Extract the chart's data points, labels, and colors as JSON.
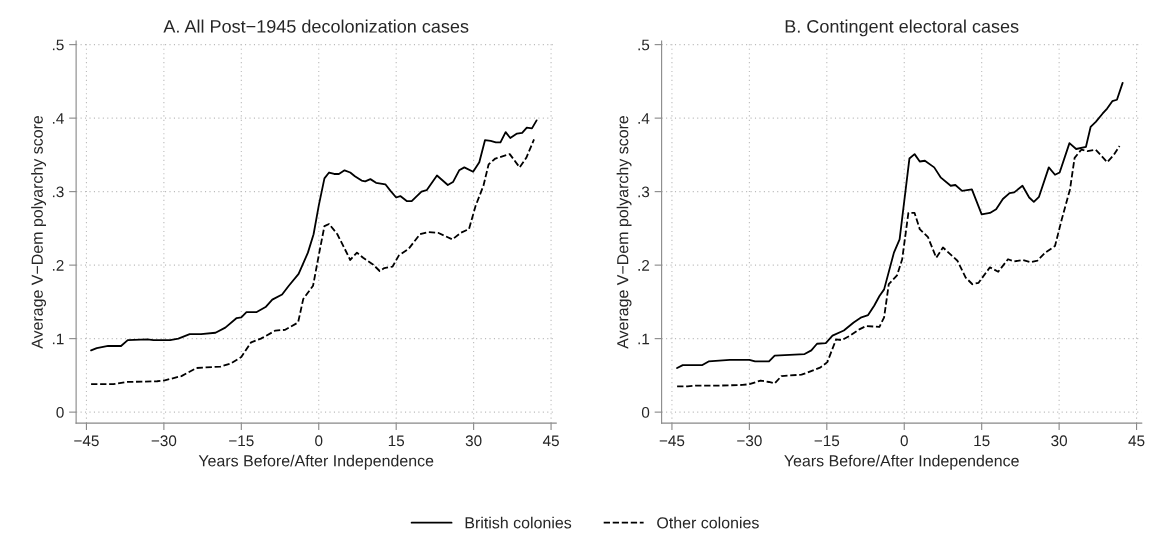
{
  "chart_data": [
    {
      "type": "line",
      "title": "A. All Post−1945 decolonization cases",
      "xlabel": "Years Before/After Independence",
      "ylabel": "Average V−Dem polyarchy score",
      "xlim": [
        -47,
        46
      ],
      "ylim": [
        -0.015,
        0.505
      ],
      "xticks": [
        {
          "value": -45,
          "label": "−45"
        },
        {
          "value": -30,
          "label": "−30"
        },
        {
          "value": -15,
          "label": "−15"
        },
        0,
        15,
        30,
        45
      ],
      "yticks": [
        0,
        {
          "value": 0.1,
          "label": ".1"
        },
        {
          "value": 0.2,
          "label": ".2"
        },
        {
          "value": 0.3,
          "label": ".3"
        },
        {
          "value": 0.4,
          "label": ".4"
        },
        {
          "value": 0.5,
          "label": ".5"
        }
      ],
      "grid": true,
      "legend": "bottom",
      "marker": "none",
      "series": [
        {
          "name": "British colonies",
          "color": "#000000",
          "line_style": "solid",
          "x": [
            -44.1,
            -43,
            -40.8,
            -38.3,
            -37,
            -33.2,
            -32,
            -28.8,
            -27.2,
            -25,
            -22.8,
            -20,
            -18.1,
            -15.9,
            -15,
            -14,
            -12.1,
            -10.3,
            -9,
            -7.1,
            -5.8,
            -3.9,
            -2.1,
            -1,
            0,
            1.1,
            2,
            3,
            3.9,
            5,
            6.1,
            7,
            8.3,
            9,
            10,
            11.1,
            12.9,
            13.9,
            15,
            15.8,
            17.1,
            18,
            19.9,
            20.9,
            22.9,
            25,
            26,
            27.2,
            28.2,
            29.9,
            31.1,
            32.2,
            33.3,
            34.3,
            35.2,
            36.2,
            37.1,
            38.4,
            39.4,
            40.3,
            41.3,
            42.2
          ],
          "values": [
            0.084,
            0.087,
            0.09,
            0.09,
            0.098,
            0.099,
            0.098,
            0.098,
            0.1,
            0.106,
            0.106,
            0.108,
            0.115,
            0.128,
            0.129,
            0.136,
            0.136,
            0.143,
            0.153,
            0.16,
            0.172,
            0.188,
            0.217,
            0.242,
            0.281,
            0.318,
            0.326,
            0.324,
            0.324,
            0.329,
            0.326,
            0.321,
            0.315,
            0.314,
            0.317,
            0.312,
            0.31,
            0.301,
            0.292,
            0.294,
            0.287,
            0.287,
            0.3,
            0.302,
            0.322,
            0.309,
            0.313,
            0.329,
            0.333,
            0.327,
            0.34,
            0.37,
            0.369,
            0.367,
            0.367,
            0.381,
            0.373,
            0.379,
            0.38,
            0.387,
            0.386,
            0.397
          ]
        },
        {
          "name": "Other colonies",
          "color": "#000000",
          "line_style": "dashed",
          "x": [
            -44.1,
            -39.8,
            -37.3,
            -31.3,
            -30,
            -26.6,
            -23.7,
            -19,
            -17.1,
            -15,
            -13.1,
            -11.2,
            -8.4,
            -6.5,
            -4,
            -3,
            -1.1,
            0.1,
            1.1,
            2,
            3.6,
            4.9,
            6.1,
            7.4,
            8.6,
            10.5,
            11.8,
            12.7,
            14.3,
            15.5,
            17.4,
            19.6,
            21.2,
            23.1,
            25.9,
            27.5,
            29.1,
            30.4,
            31.9,
            32.9,
            34.2,
            35.1,
            37,
            38.9,
            40.2,
            41.7
          ],
          "values": [
            0.038,
            0.038,
            0.041,
            0.042,
            0.043,
            0.049,
            0.06,
            0.062,
            0.066,
            0.075,
            0.095,
            0.1,
            0.111,
            0.112,
            0.122,
            0.154,
            0.172,
            0.217,
            0.253,
            0.256,
            0.242,
            0.224,
            0.207,
            0.217,
            0.21,
            0.201,
            0.192,
            0.196,
            0.198,
            0.213,
            0.222,
            0.242,
            0.245,
            0.244,
            0.235,
            0.244,
            0.249,
            0.281,
            0.308,
            0.337,
            0.345,
            0.347,
            0.351,
            0.333,
            0.346,
            0.371
          ]
        }
      ]
    },
    {
      "type": "line",
      "title": "B. Contingent electoral cases",
      "xlabel": "Years Before/After Independence",
      "ylabel": "Average V−Dem polyarchy score",
      "xlim": [
        -47,
        46
      ],
      "ylim": [
        -0.015,
        0.505
      ],
      "xticks": [
        {
          "value": -45,
          "label": "−45"
        },
        {
          "value": -30,
          "label": "−30"
        },
        {
          "value": -15,
          "label": "−15"
        },
        0,
        15,
        30,
        45
      ],
      "yticks": [
        0,
        {
          "value": 0.1,
          "label": ".1"
        },
        {
          "value": 0.2,
          "label": ".2"
        },
        {
          "value": 0.3,
          "label": ".3"
        },
        {
          "value": 0.4,
          "label": ".4"
        },
        {
          "value": 0.5,
          "label": ".5"
        }
      ],
      "grid": true,
      "marker": "none",
      "series": [
        {
          "color": "#000000",
          "line_style": "solid",
          "x": [
            -44,
            -42.9,
            -39.1,
            -37.9,
            -33.8,
            -30,
            -28.9,
            -26.2,
            -25.1,
            -19.3,
            -18,
            -16.9,
            -15.2,
            -13.9,
            -11.7,
            -9.8,
            -8.3,
            -7,
            -5.8,
            -4.8,
            -3.9,
            -2,
            -0.9,
            1,
            2,
            3,
            4,
            5.8,
            7.1,
            9,
            9.9,
            11.2,
            13.1,
            15,
            16.6,
            17.8,
            19.1,
            20.4,
            21.3,
            22.9,
            24.2,
            25.1,
            26.1,
            28,
            29.2,
            30.1,
            32,
            33.3,
            35.2,
            36.1,
            37.1,
            38.4,
            39.3,
            40.3,
            41.2,
            42.3
          ],
          "values": [
            0.06,
            0.064,
            0.064,
            0.069,
            0.071,
            0.071,
            0.069,
            0.069,
            0.077,
            0.079,
            0.084,
            0.093,
            0.094,
            0.104,
            0.111,
            0.122,
            0.129,
            0.132,
            0.145,
            0.158,
            0.167,
            0.217,
            0.235,
            0.345,
            0.351,
            0.341,
            0.342,
            0.333,
            0.319,
            0.308,
            0.309,
            0.301,
            0.303,
            0.269,
            0.271,
            0.276,
            0.29,
            0.298,
            0.299,
            0.308,
            0.292,
            0.286,
            0.293,
            0.333,
            0.323,
            0.326,
            0.366,
            0.358,
            0.361,
            0.388,
            0.395,
            0.406,
            0.413,
            0.423,
            0.425,
            0.448
          ]
        },
        {
          "color": "#000000",
          "line_style": "dashed",
          "x": [
            -44,
            -42,
            -40.4,
            -36.3,
            -31.3,
            -30,
            -27.8,
            -26.2,
            -25.1,
            -23.8,
            -19.9,
            -18.7,
            -16.2,
            -14.9,
            -13.2,
            -12.1,
            -10.5,
            -8.6,
            -7.4,
            -4.8,
            -3.9,
            -3,
            -1.4,
            -0.4,
            0.8,
            2,
            3,
            4.6,
            6.2,
            7.5,
            10.3,
            11.9,
            13.2,
            14.4,
            16.6,
            18.2,
            20.1,
            21.3,
            22.9,
            24.5,
            25.8,
            27.3,
            29.2,
            30.5,
            32.1,
            33,
            34.3,
            35.5,
            37.1,
            39.3,
            40.6,
            41.7
          ],
          "values": [
            0.035,
            0.035,
            0.036,
            0.036,
            0.037,
            0.038,
            0.043,
            0.041,
            0.039,
            0.049,
            0.051,
            0.054,
            0.061,
            0.068,
            0.099,
            0.098,
            0.104,
            0.113,
            0.117,
            0.116,
            0.129,
            0.174,
            0.186,
            0.208,
            0.271,
            0.271,
            0.249,
            0.238,
            0.21,
            0.224,
            0.206,
            0.183,
            0.174,
            0.176,
            0.197,
            0.191,
            0.208,
            0.205,
            0.207,
            0.204,
            0.206,
            0.217,
            0.226,
            0.262,
            0.303,
            0.346,
            0.357,
            0.355,
            0.357,
            0.34,
            0.35,
            0.362
          ]
        }
      ]
    }
  ]
}
